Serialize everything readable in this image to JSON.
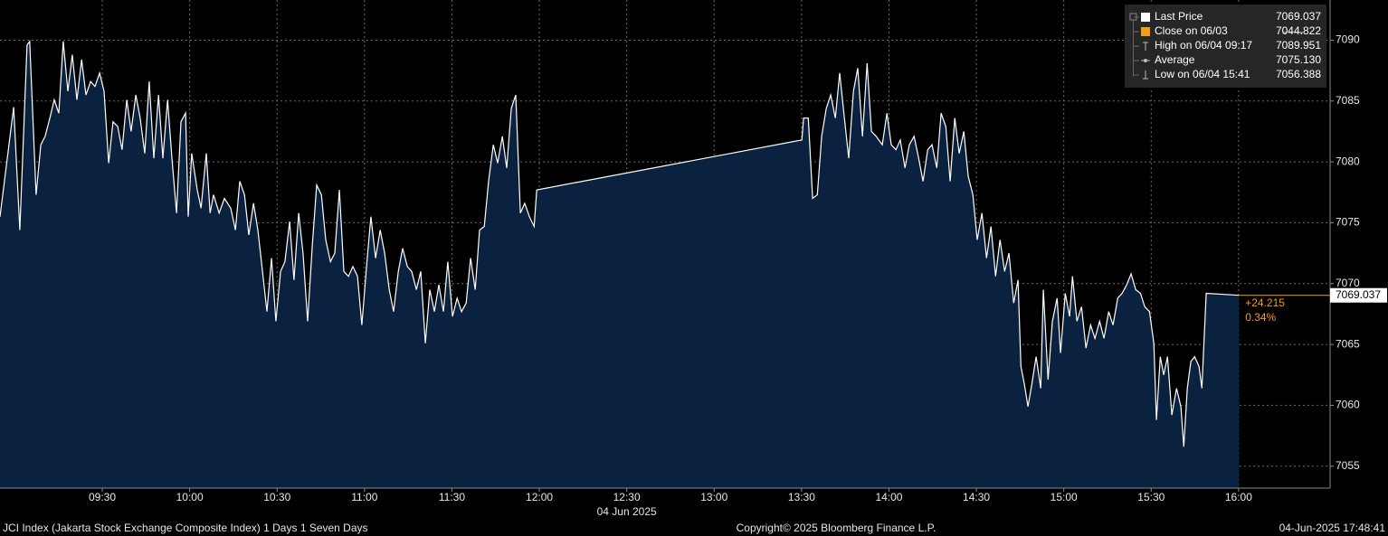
{
  "chart_data": {
    "type": "area",
    "date_label": "04 Jun 2025",
    "x": [
      534.9,
      539.6,
      541.7,
      544.2,
      545.1,
      547.3,
      548.9,
      550.4,
      552.0,
      553.5,
      555.1,
      556.6,
      558.2,
      559.7,
      561.3,
      562.9,
      564.4,
      566.0,
      567.5,
      569.1,
      570.6,
      572.2,
      573.7,
      575.3,
      576.8,
      578.4,
      579.9,
      581.5,
      583.0,
      584.6,
      586.1,
      587.7,
      589.3,
      590.8,
      592.4,
      593.9,
      595.5,
      597.0,
      598.6,
      599.5,
      600.7,
      602.6,
      603.9,
      605.7,
      607.0,
      608.2,
      610.1,
      611.9,
      614.1,
      615.7,
      617.2,
      618.8,
      620.3,
      621.9,
      623.4,
      625.0,
      626.5,
      628.1,
      629.6,
      631.2,
      632.7,
      634.3,
      635.8,
      637.4,
      638.9,
      640.5,
      642.1,
      643.6,
      645.2,
      646.7,
      648.3,
      649.8,
      651.4,
      652.9,
      654.5,
      656.0,
      657.6,
      659.1,
      660.7,
      662.2,
      663.8,
      665.4,
      666.9,
      668.5,
      670.0,
      671.6,
      673.1,
      674.7,
      676.2,
      677.8,
      679.3,
      680.9,
      682.4,
      684.0,
      685.5,
      687.1,
      688.6,
      690.2,
      691.8,
      693.3,
      694.9,
      696.4,
      698.0,
      699.5,
      701.1,
      702.6,
      704.2,
      705.7,
      707.3,
      708.8,
      710.4,
      711.9,
      713.5,
      715.0,
      716.6,
      718.2,
      719.1,
      810.1,
      810.7,
      812.3,
      813.8,
      815.4,
      816.9,
      818.5,
      820.0,
      821.6,
      823.1,
      824.7,
      826.2,
      827.8,
      829.3,
      830.9,
      832.5,
      834.0,
      835.6,
      837.7,
      839.3,
      840.8,
      842.4,
      843.9,
      845.5,
      847.0,
      848.6,
      850.2,
      851.7,
      853.3,
      854.8,
      856.4,
      857.9,
      859.5,
      861.0,
      862.6,
      864.1,
      865.7,
      867.2,
      868.8,
      870.3,
      871.9,
      873.5,
      875.0,
      876.6,
      878.1,
      879.7,
      881.2,
      882.8,
      884.3,
      885.3,
      886.5,
      887.7,
      889.0,
      890.5,
      892.1,
      893.0,
      894.6,
      896.1,
      897.7,
      898.9,
      900.5,
      902.0,
      903.0,
      904.5,
      906.1,
      907.6,
      909.2,
      910.7,
      912.3,
      913.8,
      915.4,
      916.9,
      918.5,
      920.0,
      921.6,
      923.1,
      924.7,
      926.3,
      927.8,
      929.4,
      930.9,
      931.8,
      933.1,
      934.3,
      935.6,
      937.1,
      938.7,
      940.2,
      941.2,
      942.4,
      943.6,
      944.9,
      946.4,
      947.4,
      948.9,
      960.1
    ],
    "series": [
      {
        "name": "Last Price",
        "color": "#ffffff",
        "fill": "#0b2140",
        "values": [
          7075.5,
          7084.5,
          7074.4,
          7089.6,
          7089.9,
          7077.3,
          7081.4,
          7082.1,
          7083.6,
          7085.1,
          7084.0,
          7089.9,
          7085.8,
          7088.8,
          7085.1,
          7088.4,
          7085.5,
          7086.6,
          7086.2,
          7087.3,
          7085.8,
          7079.9,
          7083.3,
          7082.9,
          7081.0,
          7085.1,
          7082.5,
          7085.5,
          7083.6,
          7080.7,
          7086.6,
          7080.3,
          7085.5,
          7080.3,
          7085.1,
          7080.3,
          7075.8,
          7083.3,
          7084.0,
          7075.5,
          7080.7,
          7077.7,
          7076.2,
          7080.7,
          7075.8,
          7077.3,
          7075.8,
          7077.0,
          7076.2,
          7074.4,
          7078.4,
          7077.3,
          7074.0,
          7076.6,
          7074.4,
          7071.0,
          7067.7,
          7072.1,
          7066.9,
          7071.0,
          7071.8,
          7075.1,
          7070.3,
          7075.8,
          7072.5,
          7066.9,
          7073.2,
          7078.1,
          7077.3,
          7073.6,
          7071.8,
          7072.5,
          7077.7,
          7071.0,
          7070.6,
          7071.4,
          7070.6,
          7066.6,
          7071.4,
          7075.5,
          7072.1,
          7074.4,
          7072.5,
          7069.5,
          7067.7,
          7071.0,
          7072.9,
          7071.4,
          7071.0,
          7069.5,
          7071.0,
          7065.1,
          7069.5,
          7067.7,
          7069.9,
          7067.7,
          7071.8,
          7067.3,
          7068.8,
          7067.7,
          7068.4,
          7072.1,
          7069.5,
          7074.4,
          7074.7,
          7078.4,
          7081.4,
          7079.9,
          7082.1,
          7079.5,
          7084.4,
          7085.5,
          7075.8,
          7076.6,
          7075.5,
          7074.7,
          7077.7,
          7081.8,
          7083.6,
          7083.6,
          7077.0,
          7077.3,
          7082.1,
          7084.4,
          7085.5,
          7083.6,
          7087.3,
          7083.6,
          7080.3,
          7085.8,
          7087.7,
          7082.1,
          7088.1,
          7082.5,
          7082.1,
          7081.4,
          7084.0,
          7081.4,
          7081.0,
          7081.8,
          7079.5,
          7081.4,
          7082.1,
          7080.3,
          7078.4,
          7081.0,
          7081.4,
          7079.5,
          7084.0,
          7082.9,
          7078.4,
          7083.6,
          7080.7,
          7082.5,
          7078.8,
          7077.3,
          7073.6,
          7075.8,
          7072.1,
          7074.7,
          7070.6,
          7073.6,
          7071.0,
          7072.5,
          7068.4,
          7070.3,
          7063.2,
          7061.7,
          7059.9,
          7061.7,
          7064.0,
          7061.4,
          7069.5,
          7062.1,
          7066.9,
          7068.8,
          7064.3,
          7069.2,
          7067.3,
          7070.6,
          7066.9,
          7068.1,
          7064.7,
          7066.6,
          7065.5,
          7066.9,
          7065.5,
          7067.7,
          7066.6,
          7068.8,
          7069.2,
          7069.9,
          7070.8,
          7069.5,
          7069.2,
          7068.1,
          7067.7,
          7065.1,
          7058.8,
          7064.0,
          7062.5,
          7064.0,
          7059.2,
          7061.4,
          7059.9,
          7056.6,
          7061.4,
          7063.6,
          7064.0,
          7063.2,
          7061.4,
          7069.2,
          7069.037
        ]
      }
    ],
    "xlim": [
      534.9,
      991.4
    ],
    "xticks": [
      {
        "value": 570,
        "label": "09:30"
      },
      {
        "value": 600,
        "label": "10:00"
      },
      {
        "value": 630,
        "label": "10:30"
      },
      {
        "value": 660,
        "label": "11:00"
      },
      {
        "value": 690,
        "label": "11:30"
      },
      {
        "value": 720,
        "label": "12:00"
      },
      {
        "value": 750,
        "label": "12:30"
      },
      {
        "value": 780,
        "label": "13:00"
      },
      {
        "value": 810,
        "label": "13:30"
      },
      {
        "value": 840,
        "label": "14:00"
      },
      {
        "value": 870,
        "label": "14:30"
      },
      {
        "value": 900,
        "label": "15:00"
      },
      {
        "value": 930,
        "label": "15:30"
      },
      {
        "value": 960,
        "label": "16:00"
      }
    ],
    "ylim": [
      7053.2,
      7093.3
    ],
    "yticks": [
      7055,
      7060,
      7065,
      7070,
      7075,
      7080,
      7085,
      7090
    ],
    "grid": true,
    "legend_position": "upper right",
    "legend_stats": [
      {
        "name": "Last Price",
        "value": 7069.037,
        "color": "#ffffff"
      },
      {
        "name": "Close on 06/03",
        "value": 7044.822,
        "color": "#f39c1e"
      },
      {
        "name": "High on 06/04 09:17",
        "value": 7089.951,
        "color": "#bbbbbb"
      },
      {
        "name": "Average",
        "value": 7075.13,
        "value_label": "7075.130",
        "color": "#bbbbbb"
      },
      {
        "name": "Low on 06/04 15:41",
        "value": 7056.388,
        "color": "#bbbbbb"
      }
    ],
    "change": {
      "value": 24.215,
      "label": "+24.215"
    },
    "change_pct": {
      "value": 0.34,
      "label": "0.34%"
    },
    "change_color": "#f39c1e",
    "footer": {
      "left": "JCI Index (Jakarta Stock Exchange Composite Index) 1 Days 1 Seven Days",
      "center": "Copyright© 2025 Bloomberg Finance L.P.",
      "right": "04-Jun-2025 17:48:41"
    }
  }
}
